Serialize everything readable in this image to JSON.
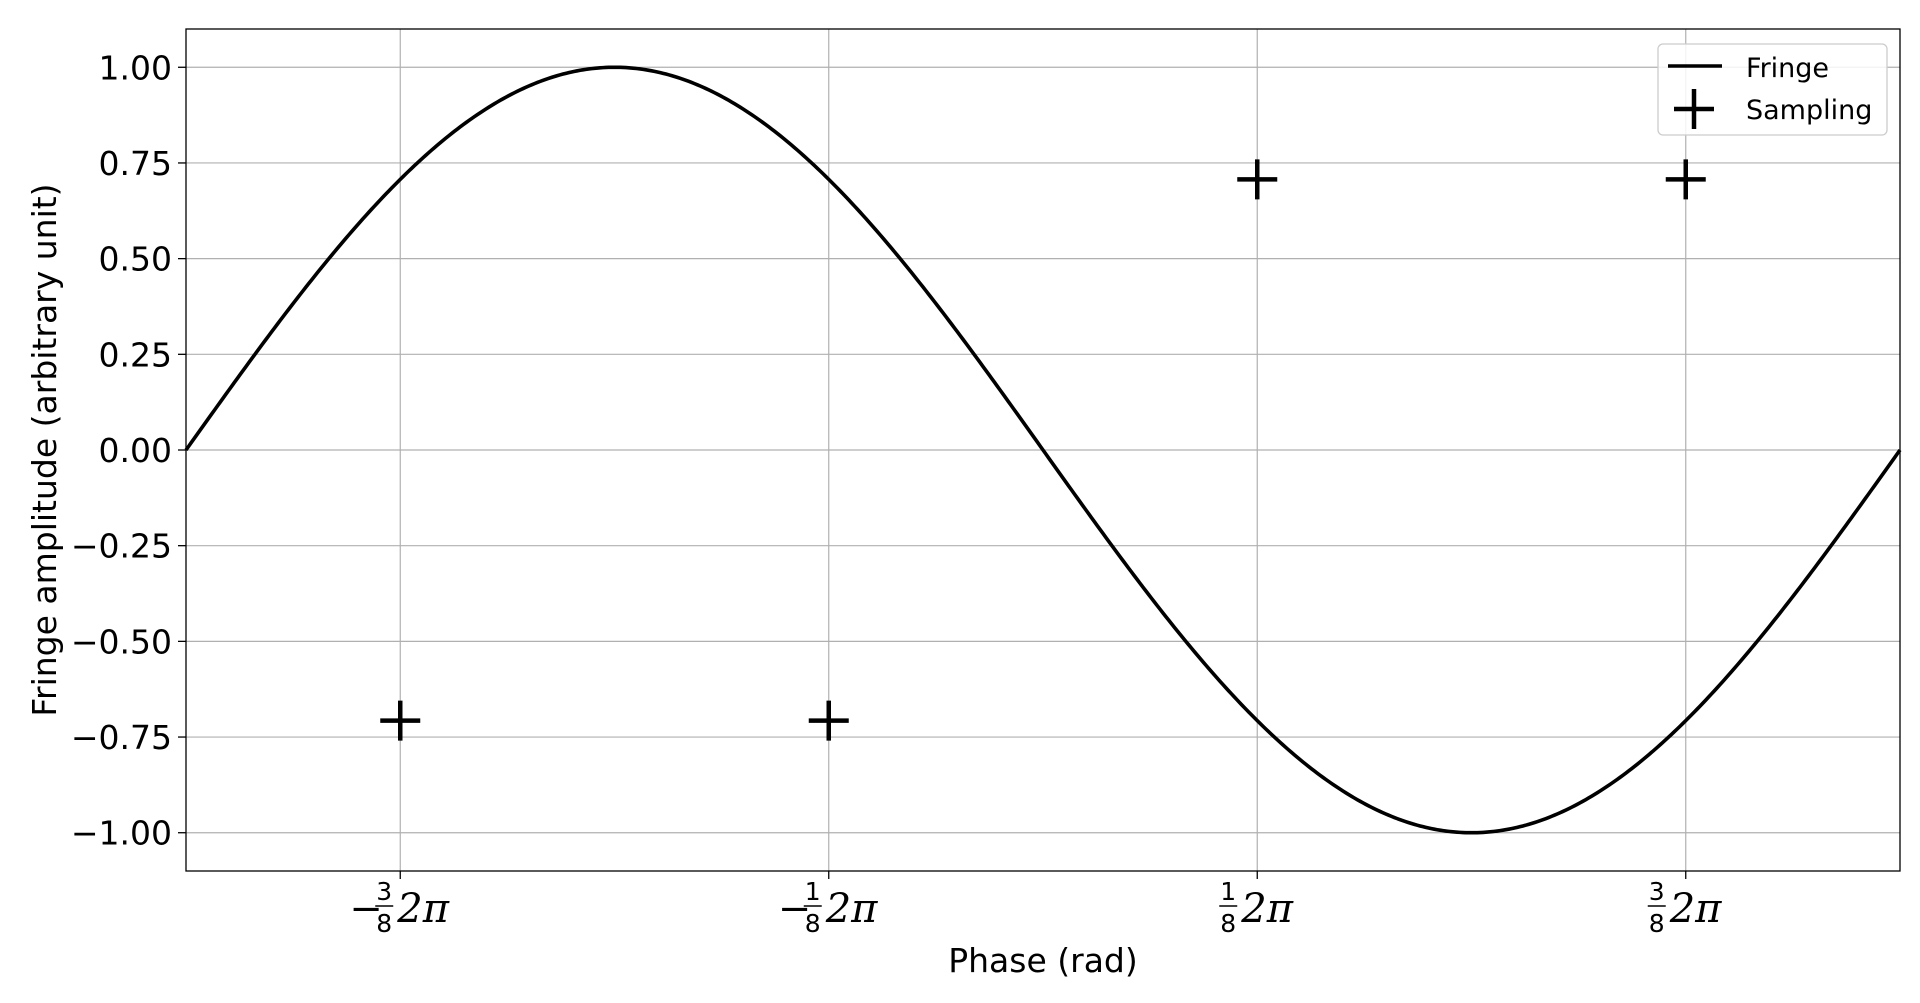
{
  "chart_data": {
    "type": "line",
    "xlabel": "Phase (rad)",
    "ylabel": "Fringe amplitude (arbitrary unit)",
    "xlim": [
      -3.14159,
      3.14159
    ],
    "ylim": [
      -1.1,
      1.1
    ],
    "grid": true,
    "legend_position": "top-right",
    "x_ticks": [
      {
        "value": -2.35619,
        "sign": "−",
        "num": "3",
        "den": "8",
        "suffix": "2π"
      },
      {
        "value": -0.785398,
        "sign": "−",
        "num": "1",
        "den": "8",
        "suffix": "2π"
      },
      {
        "value": 0.785398,
        "sign": "",
        "num": "1",
        "den": "8",
        "suffix": "2π"
      },
      {
        "value": 2.35619,
        "sign": "",
        "num": "3",
        "den": "8",
        "suffix": "2π"
      }
    ],
    "y_ticks": [
      {
        "value": 1.0,
        "label": "1.00"
      },
      {
        "value": 0.75,
        "label": "0.75"
      },
      {
        "value": 0.5,
        "label": "0.50"
      },
      {
        "value": 0.25,
        "label": "0.25"
      },
      {
        "value": 0.0,
        "label": "0.00"
      },
      {
        "value": -0.25,
        "label": "−0.25"
      },
      {
        "value": -0.5,
        "label": "−0.50"
      },
      {
        "value": -0.75,
        "label": "−0.75"
      },
      {
        "value": -1.0,
        "label": "−1.00"
      }
    ],
    "series": [
      {
        "name": "Fringe",
        "kind": "line",
        "color": "#000000",
        "function": "-sin(x)",
        "x_range": [
          -3.14159,
          3.14159
        ]
      },
      {
        "name": "Sampling",
        "kind": "marker",
        "marker": "plus",
        "color": "#000000",
        "x": [
          -2.35619,
          -0.785398,
          0.785398,
          2.35619
        ],
        "y": [
          -0.7071,
          -0.7071,
          0.7071,
          0.7071
        ]
      }
    ]
  }
}
